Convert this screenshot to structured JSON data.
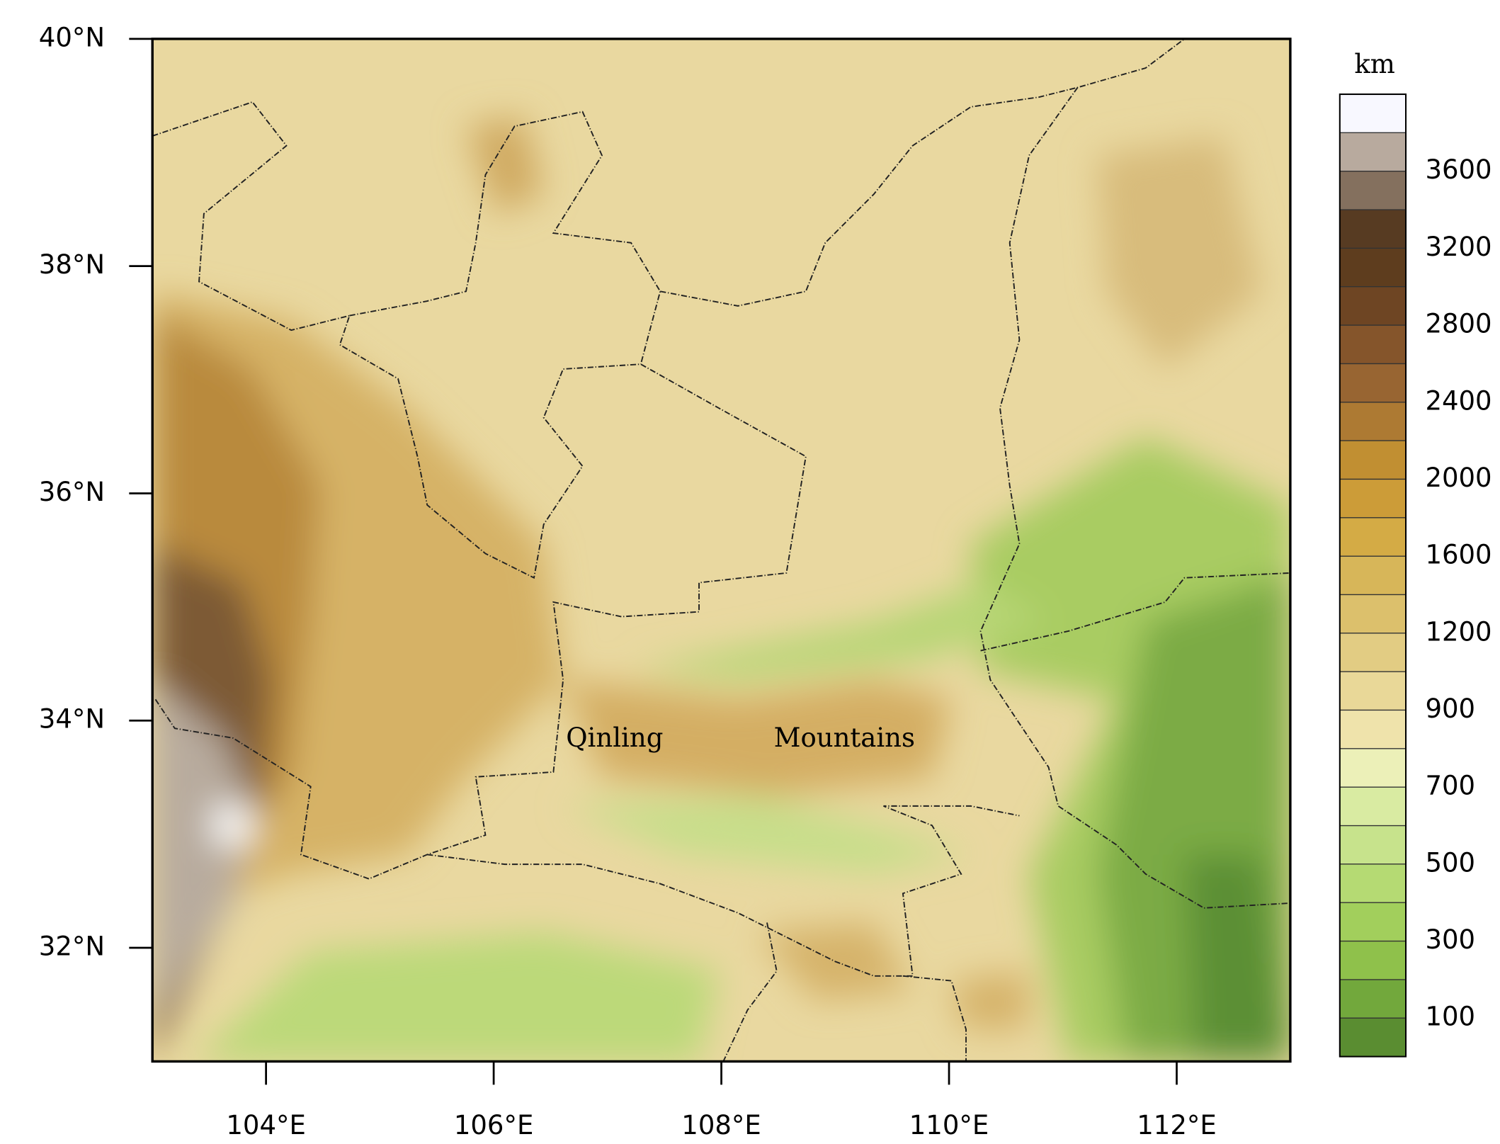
{
  "map": {
    "unit": "km",
    "lat_labels": [
      "40°N",
      "38°N",
      "36°N",
      "34°N",
      "32°N"
    ],
    "lon_labels": [
      "104°E",
      "106°E",
      "108°E",
      "110°E",
      "112°E"
    ],
    "colorbar_labels": [
      "3600",
      "3200",
      "2800",
      "2400",
      "2000",
      "1600",
      "1200",
      "900",
      "700",
      "500",
      "300",
      "100"
    ],
    "annotations": [
      "Qinling",
      "Mountains"
    ]
  }
}
